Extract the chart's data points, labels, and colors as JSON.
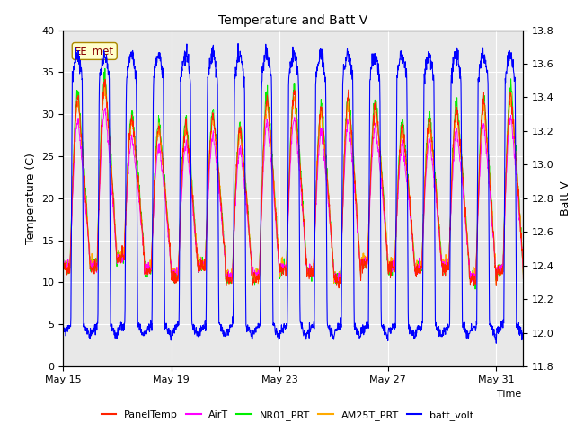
{
  "title": "Temperature and Batt V",
  "xlabel": "Time",
  "ylabel_left": "Temperature (C)",
  "ylabel_right": "Batt V",
  "annotation": "EE_met",
  "ylim_left": [
    0,
    40
  ],
  "ylim_right": [
    11.8,
    13.8
  ],
  "xtick_labels": [
    "May 15",
    "May 19",
    "May 23",
    "May 27",
    "May 31"
  ],
  "xtick_positions": [
    0,
    4,
    8,
    12,
    16
  ],
  "xlim": [
    0,
    17
  ],
  "legend_entries": [
    "PanelTemp",
    "AirT",
    "NR01_PRT",
    "AM25T_PRT",
    "batt_volt"
  ],
  "legend_colors": [
    "#ff2200",
    "#ff00ff",
    "#00ee00",
    "#ffaa00",
    "#0000ff"
  ],
  "line_colors": {
    "PanelTemp": "#ff2200",
    "AirT": "#ff00ff",
    "NR01_PRT": "#00ee00",
    "AM25T_PRT": "#ffaa00",
    "batt_volt": "#0000ff"
  },
  "background_color": "#e8e8e8",
  "n_days": 17,
  "pts_per_day": 96,
  "yticks_left": [
    0,
    5,
    10,
    15,
    20,
    25,
    30,
    35,
    40
  ],
  "yticks_right": [
    11.8,
    12.0,
    12.2,
    12.4,
    12.6,
    12.8,
    13.0,
    13.2,
    13.4,
    13.6,
    13.8
  ],
  "annotation_facecolor": "#ffffcc",
  "annotation_edgecolor": "#aa8800",
  "annotation_textcolor": "#880000",
  "figsize": [
    6.4,
    4.8
  ],
  "dpi": 100
}
